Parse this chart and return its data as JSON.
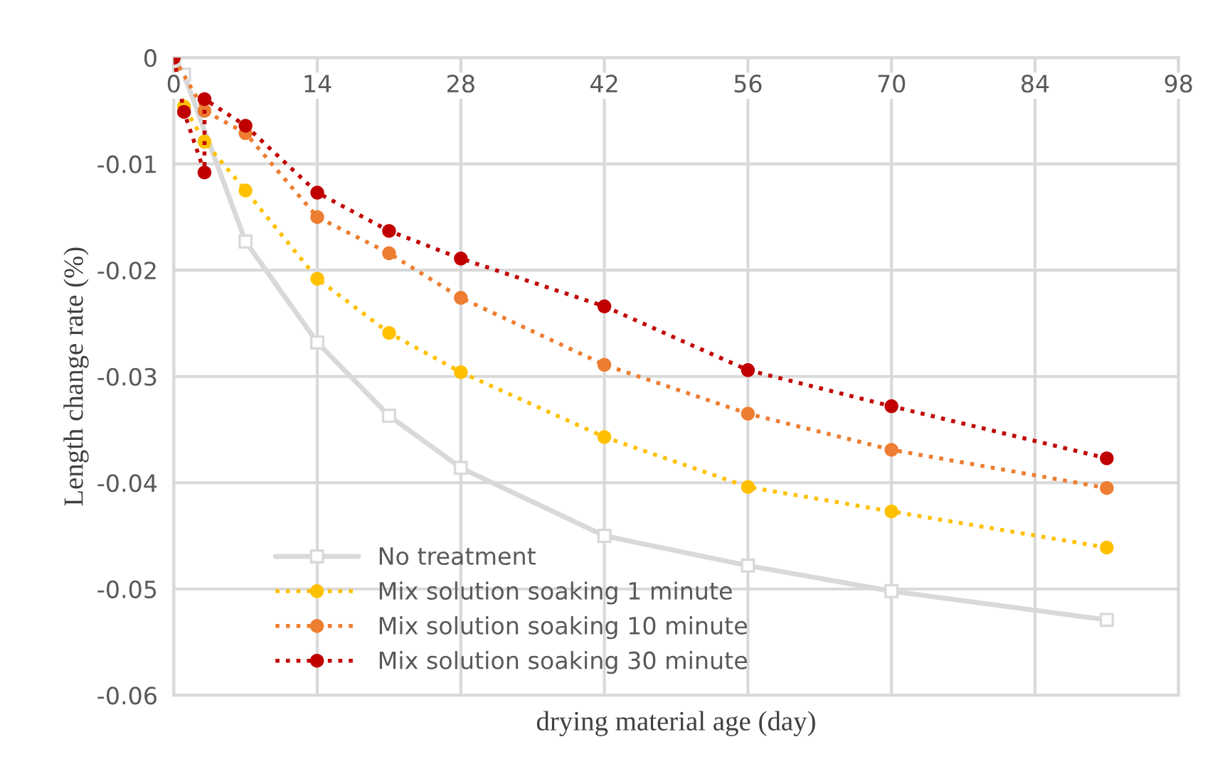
{
  "chart_data": {
    "type": "line",
    "xlabel": "drying material age (day)",
    "ylabel": "Length change rate (%)",
    "xlim": [
      0,
      98
    ],
    "xticks": [
      0,
      14,
      28,
      42,
      56,
      70,
      84,
      98
    ],
    "ylim": [
      -0.06,
      0
    ],
    "yticks": [
      -0.06,
      -0.05,
      -0.04,
      -0.03,
      -0.02,
      -0.01,
      0
    ],
    "grid": true,
    "legend": "bottom left",
    "series": [
      {
        "name": "No treatment",
        "color": "#d9d9d9",
        "marker": "square",
        "line_style": "solid",
        "x": [
          0,
          1,
          7,
          14,
          21,
          28,
          42,
          56,
          70,
          91
        ],
        "values": [
          0,
          -0.0016,
          -0.0173,
          -0.0268,
          -0.0337,
          -0.0386,
          -0.045,
          -0.0478,
          -0.0502,
          -0.0529
        ]
      },
      {
        "name": "Mix solution soaking 1 minute",
        "color": "#ffc000",
        "marker": "circle",
        "line_style": "dotted",
        "x": [
          0,
          1,
          3,
          7,
          14,
          21,
          28,
          42,
          56,
          70,
          91
        ],
        "values": [
          0,
          -0.0046,
          -0.0079,
          -0.0125,
          -0.0208,
          -0.0259,
          -0.0296,
          -0.0357,
          -0.0404,
          -0.0427,
          -0.0461
        ]
      },
      {
        "name": "Mix solution soaking 10 minute",
        "color": "#ed7d31",
        "marker": "circle",
        "line_style": "dotted",
        "x": [
          0,
          1,
          3,
          7,
          14,
          21,
          28,
          42,
          56,
          70,
          91
        ],
        "values": [
          0,
          null,
          -0.005,
          -0.0071,
          -0.015,
          -0.0184,
          -0.0226,
          -0.0289,
          -0.0335,
          -0.0369,
          -0.0405
        ]
      },
      {
        "name": "Mix solution soaking 30 minute",
        "color": "#c00000",
        "marker": "circle",
        "line_style": "dotted",
        "x": [
          0,
          1,
          3,
          3,
          7,
          14,
          21,
          28,
          42,
          56,
          70,
          91
        ],
        "values": [
          0,
          -0.0051,
          -0.0108,
          -0.0039,
          -0.0064,
          -0.0127,
          -0.0163,
          -0.0189,
          -0.0234,
          -0.0294,
          -0.0328,
          -0.0377
        ]
      }
    ]
  }
}
